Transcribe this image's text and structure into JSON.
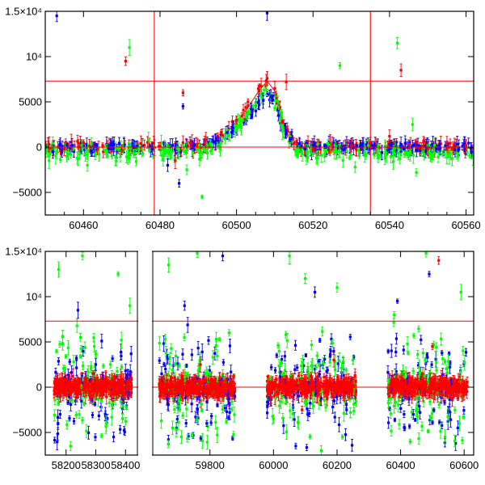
{
  "chart_data": [
    {
      "type": "scatter",
      "title": "",
      "xlabel": "",
      "ylabel": "",
      "xlim": [
        60450,
        60562
      ],
      "ylim": [
        -7500,
        15000
      ],
      "x_ticks": [
        60460,
        60480,
        60500,
        60520,
        60540,
        60560
      ],
      "x_tick_labels": [
        "60460",
        "60480",
        "60500",
        "60520",
        "60540",
        "60560"
      ],
      "y_ticks": [
        -5000,
        0,
        5000,
        10000,
        15000
      ],
      "y_tick_labels": [
        "−5000",
        "0",
        "5000",
        "10⁴",
        "1.5×10⁴"
      ],
      "horizontal_lines": [
        7300,
        0
      ],
      "vertical_lines": [
        60478.5,
        60535
      ],
      "model_curve": {
        "x": [
          60450,
          60488,
          60494,
          60498,
          60502,
          60506,
          60508,
          60510,
          60512,
          60516,
          60562
        ],
        "y": [
          0,
          0,
          600,
          1800,
          3800,
          6300,
          7300,
          6200,
          3000,
          0,
          0
        ]
      },
      "series": [
        {
          "name": "",
          "color": "#ff0000",
          "x": [
            60451,
            60455,
            60460,
            60465,
            60470,
            60475,
            60480,
            60484,
            60488,
            60492,
            60496,
            60500,
            60503,
            60506,
            60508,
            60510,
            60512,
            60515,
            60520,
            60525,
            60530,
            60535,
            60540,
            60545,
            60550,
            60555,
            60560,
            60471,
            60486,
            60513,
            60543
          ],
          "y": [
            300,
            -200,
            500,
            200,
            -300,
            400,
            100,
            -1500,
            500,
            800,
            1600,
            3000,
            5000,
            6800,
            7600,
            6500,
            2800,
            400,
            -300,
            300,
            200,
            500,
            1200,
            300,
            -200,
            400,
            200,
            9500,
            6000,
            7200,
            8500
          ]
        },
        {
          "name": "",
          "color": "#0000ff",
          "x": [
            60452,
            60457,
            60462,
            60468,
            60474,
            60478,
            60482,
            60485,
            60489,
            60494,
            60499,
            60504,
            60507,
            60509,
            60511,
            60514,
            60518,
            60523,
            60528,
            60533,
            60538,
            60543,
            60548,
            60553,
            60558,
            60453,
            60486,
            60508
          ],
          "y": [
            -500,
            200,
            -400,
            300,
            100,
            -200,
            -2000,
            -4000,
            300,
            600,
            1800,
            3500,
            5200,
            5600,
            3500,
            800,
            -200,
            100,
            -300,
            400,
            -600,
            300,
            -400,
            200,
            -300,
            14500,
            4500,
            14800
          ]
        },
        {
          "name": "",
          "color": "#00ff00",
          "x": [
            60451,
            60456,
            60461,
            60466,
            60472,
            60477,
            60481,
            60487,
            60491,
            60497,
            60501,
            60505,
            60510,
            60516,
            60521,
            60526,
            60531,
            60536,
            60541,
            60546,
            60551,
            60556,
            60561,
            60472,
            60491,
            60527,
            60542,
            60547
          ],
          "y": [
            -1500,
            -800,
            -2000,
            -600,
            -1200,
            800,
            -900,
            -2500,
            -700,
            1200,
            2500,
            4800,
            4300,
            -1000,
            -1200,
            -600,
            -2200,
            -900,
            -1600,
            2500,
            -1300,
            -700,
            -1000,
            11000,
            -5500,
            9000,
            11500,
            -2800
          ]
        }
      ]
    },
    {
      "type": "scatter",
      "title": "",
      "xlabel": "",
      "ylabel": "",
      "broken_x_axis": true,
      "segments": [
        {
          "xlim": [
            58130,
            58440
          ],
          "x_ticks": [
            58200,
            58300,
            58400
          ],
          "x_tick_labels": [
            "58200",
            "58300",
            "58400"
          ]
        },
        {
          "xlim": [
            59620,
            60630
          ],
          "x_ticks": [
            59800,
            60000,
            60200,
            60400,
            60600
          ],
          "x_tick_labels": [
            "59800",
            "60000",
            "60200",
            "60400",
            "60600"
          ]
        }
      ],
      "ylim": [
        -7500,
        15000
      ],
      "y_ticks": [
        -5000,
        0,
        5000,
        10000,
        15000
      ],
      "y_tick_labels": [
        "−5000",
        "0",
        "5000",
        "10⁴",
        "1.5×10⁴"
      ],
      "horizontal_lines": [
        7300,
        0
      ],
      "data_windows": [
        [
          58160,
          58420
        ],
        [
          59640,
          59880
        ],
        [
          59980,
          60260
        ],
        [
          60360,
          60610
        ]
      ],
      "series": [
        {
          "name": "",
          "color": "#ff0000",
          "x": [
            58170,
            58200,
            58230,
            58260,
            58290,
            58320,
            58350,
            58380,
            58410,
            59650,
            59690,
            59730,
            59770,
            59810,
            59850,
            59990,
            60040,
            60090,
            60140,
            60190,
            60240,
            60370,
            60420,
            60470,
            60500,
            60520,
            60560,
            60600
          ],
          "y": [
            200,
            -500,
            800,
            -300,
            1500,
            -800,
            400,
            -200,
            600,
            -400,
            700,
            -1000,
            2500,
            600,
            -300,
            -900,
            1200,
            -2500,
            800,
            3000,
            -600,
            400,
            -800,
            1500,
            4500,
            14000,
            -1200,
            300
          ]
        },
        {
          "name": "",
          "color": "#0000ff",
          "x": [
            58180,
            58240,
            58300,
            58360,
            58400,
            59660,
            59720,
            59790,
            59840,
            60010,
            60070,
            60130,
            60180,
            60230,
            60390,
            60440,
            60490,
            60530,
            60580
          ],
          "y": [
            -3000,
            8500,
            2500,
            -5500,
            1800,
            2000,
            9000,
            -4000,
            14500,
            3500,
            -6500,
            10500,
            4000,
            -2500,
            9500,
            -3000,
            12500,
            3800,
            -4500
          ]
        },
        {
          "name": "",
          "color": "#00ff00",
          "x": [
            58175,
            58215,
            58255,
            58295,
            58335,
            58375,
            58415,
            59670,
            59710,
            59760,
            59800,
            59860,
            60000,
            60050,
            60100,
            60150,
            60200,
            60250,
            60380,
            60430,
            60480,
            60540,
            60590
          ],
          "y": [
            13000,
            -6500,
            14500,
            4500,
            -4000,
            12500,
            9000,
            13500,
            -5500,
            14800,
            1500,
            6000,
            -3500,
            14500,
            12000,
            -7000,
            11000,
            3000,
            8000,
            -6000,
            14800,
            -5500,
            10500
          ]
        }
      ]
    }
  ]
}
